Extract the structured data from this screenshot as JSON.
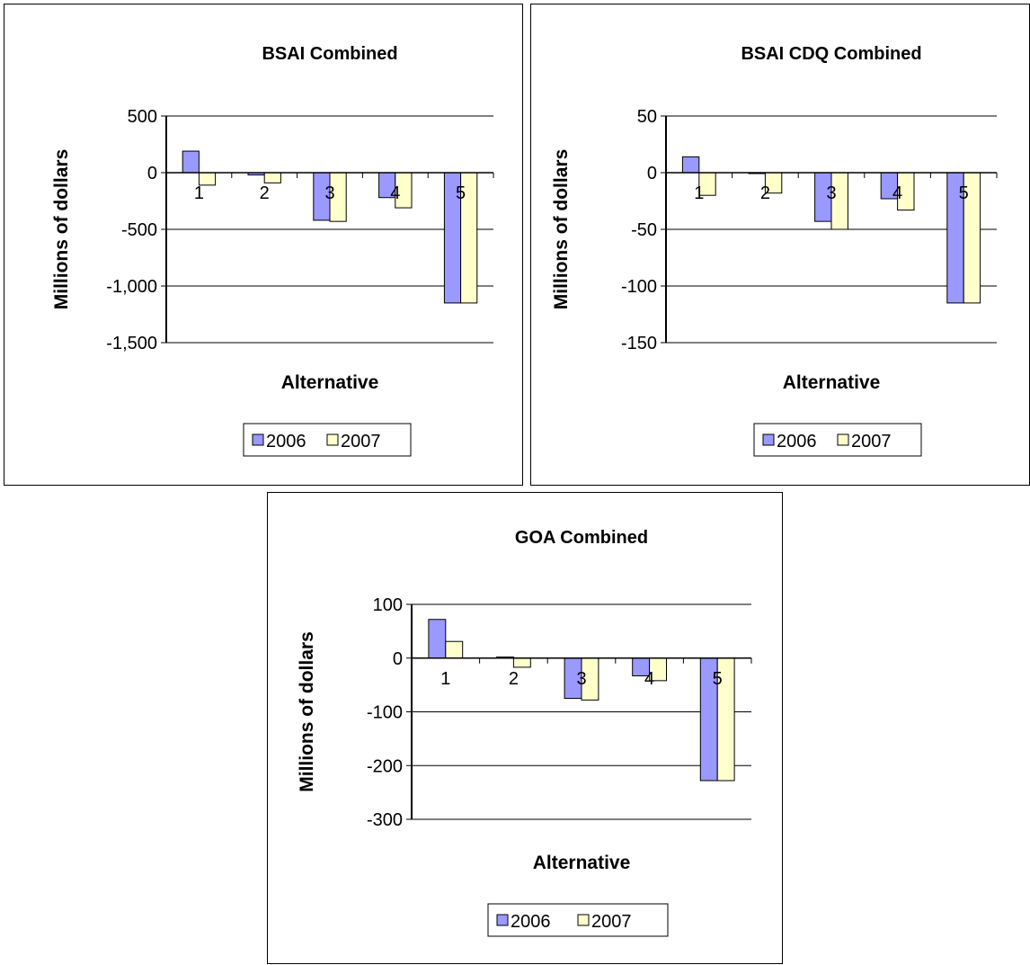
{
  "colors": {
    "2006": "#9999ff",
    "2007": "#ffffcc"
  },
  "chart_data": [
    {
      "type": "bar",
      "title": "BSAI Combined",
      "xlabel": "Alternative",
      "ylabel": "Millions of dollars",
      "categories": [
        "1",
        "2",
        "3",
        "4",
        "5"
      ],
      "ylim": [
        -1500,
        500
      ],
      "yticks": [
        500,
        0,
        -500,
        -1000,
        -1500
      ],
      "ytick_labels": [
        "500",
        "0",
        "-500",
        "-1,000",
        "-1,500"
      ],
      "series": [
        {
          "name": "2006",
          "values": [
            190,
            -20,
            -420,
            -220,
            -1150
          ]
        },
        {
          "name": "2007",
          "values": [
            -110,
            -90,
            -430,
            -310,
            -1150
          ]
        }
      ],
      "legend": "bottom"
    },
    {
      "type": "bar",
      "title": "BSAI CDQ Combined",
      "xlabel": "Alternative",
      "ylabel": "Millions of dollars",
      "categories": [
        "1",
        "2",
        "3",
        "4",
        "5"
      ],
      "ylim": [
        -150,
        50
      ],
      "yticks": [
        50,
        0,
        -50,
        -100,
        -150
      ],
      "ytick_labels": [
        "50",
        "0",
        "-50",
        "-100",
        "-150"
      ],
      "series": [
        {
          "name": "2006",
          "values": [
            14,
            0,
            -43,
            -23,
            -115
          ]
        },
        {
          "name": "2007",
          "values": [
            -20,
            -18,
            -50,
            -33,
            -115
          ]
        }
      ],
      "legend": "bottom"
    },
    {
      "type": "bar",
      "title": "GOA Combined",
      "xlabel": "Alternative",
      "ylabel": "Millions of dollars",
      "categories": [
        "1",
        "2",
        "3",
        "4",
        "5"
      ],
      "ylim": [
        -300,
        100
      ],
      "yticks": [
        100,
        0,
        -100,
        -200,
        -300
      ],
      "ytick_labels": [
        "100",
        "0",
        "-100",
        "-200",
        "-300"
      ],
      "series": [
        {
          "name": "2006",
          "values": [
            72,
            2,
            -75,
            -33,
            -228
          ]
        },
        {
          "name": "2007",
          "values": [
            31,
            -17,
            -78,
            -42,
            -228
          ]
        }
      ],
      "legend": "bottom"
    }
  ]
}
